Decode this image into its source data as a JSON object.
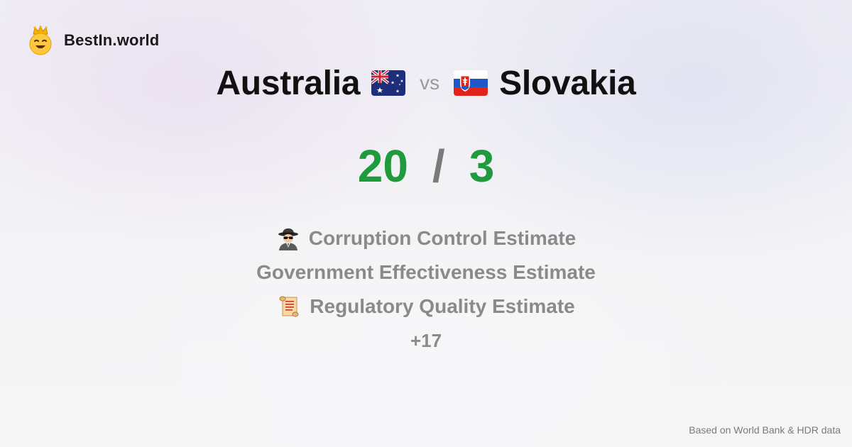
{
  "brand": {
    "name": "BestIn.world",
    "logo_icon": "smiling-face-with-crown-icon"
  },
  "comparison": {
    "left_country": "Australia",
    "left_flag": "australia-flag-icon",
    "vs_label": "vs",
    "right_country": "Slovakia",
    "right_flag": "slovakia-flag-icon"
  },
  "score": {
    "left": "20",
    "separator": "/",
    "right": "3",
    "color": "#1f9a3c"
  },
  "metrics": [
    {
      "icon": "spy-icon",
      "label": "Corruption Control Estimate"
    },
    {
      "icon": "",
      "label": "Government Effectiveness Estimate"
    },
    {
      "icon": "scroll-icon",
      "label": "Regulatory Quality Estimate"
    }
  ],
  "more_count": "+17",
  "footer": "Based on World Bank & HDR data"
}
